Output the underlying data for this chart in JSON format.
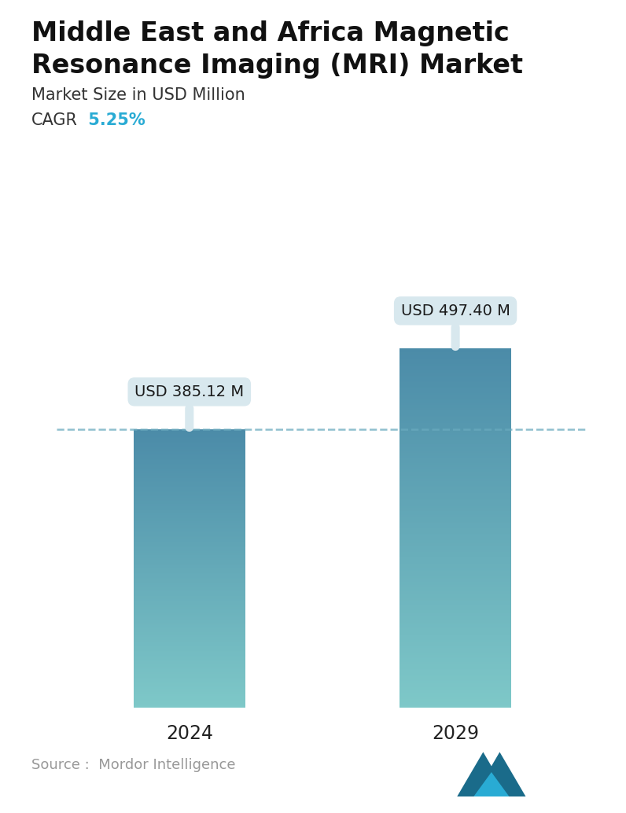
{
  "title_line1": "Middle East and Africa Magnetic",
  "title_line2": "Resonance Imaging (MRI) Market",
  "subtitle": "Market Size in USD Million",
  "cagr_label": "CAGR",
  "cagr_value": " 5.25%",
  "cagr_color": "#29ABD4",
  "categories": [
    "2024",
    "2029"
  ],
  "values": [
    385.12,
    497.4
  ],
  "labels": [
    "USD 385.12 M",
    "USD 497.40 M"
  ],
  "bar_top_color": "#4B8BA8",
  "bar_bottom_color": "#7EC8C8",
  "dashed_line_color": "#6AAABE",
  "source_text": "Source :  Mordor Intelligence",
  "source_color": "#999999",
  "background_color": "#ffffff",
  "title_fontsize": 24,
  "subtitle_fontsize": 15,
  "cagr_fontsize": 15,
  "tick_fontsize": 17,
  "label_fontsize": 14,
  "source_fontsize": 13,
  "ylim": [
    0,
    620
  ],
  "bar_width": 0.42,
  "callout_box_color": "#d8e8ee",
  "logo_color1": "#1a6b8a",
  "logo_color2": "#29ABD4"
}
